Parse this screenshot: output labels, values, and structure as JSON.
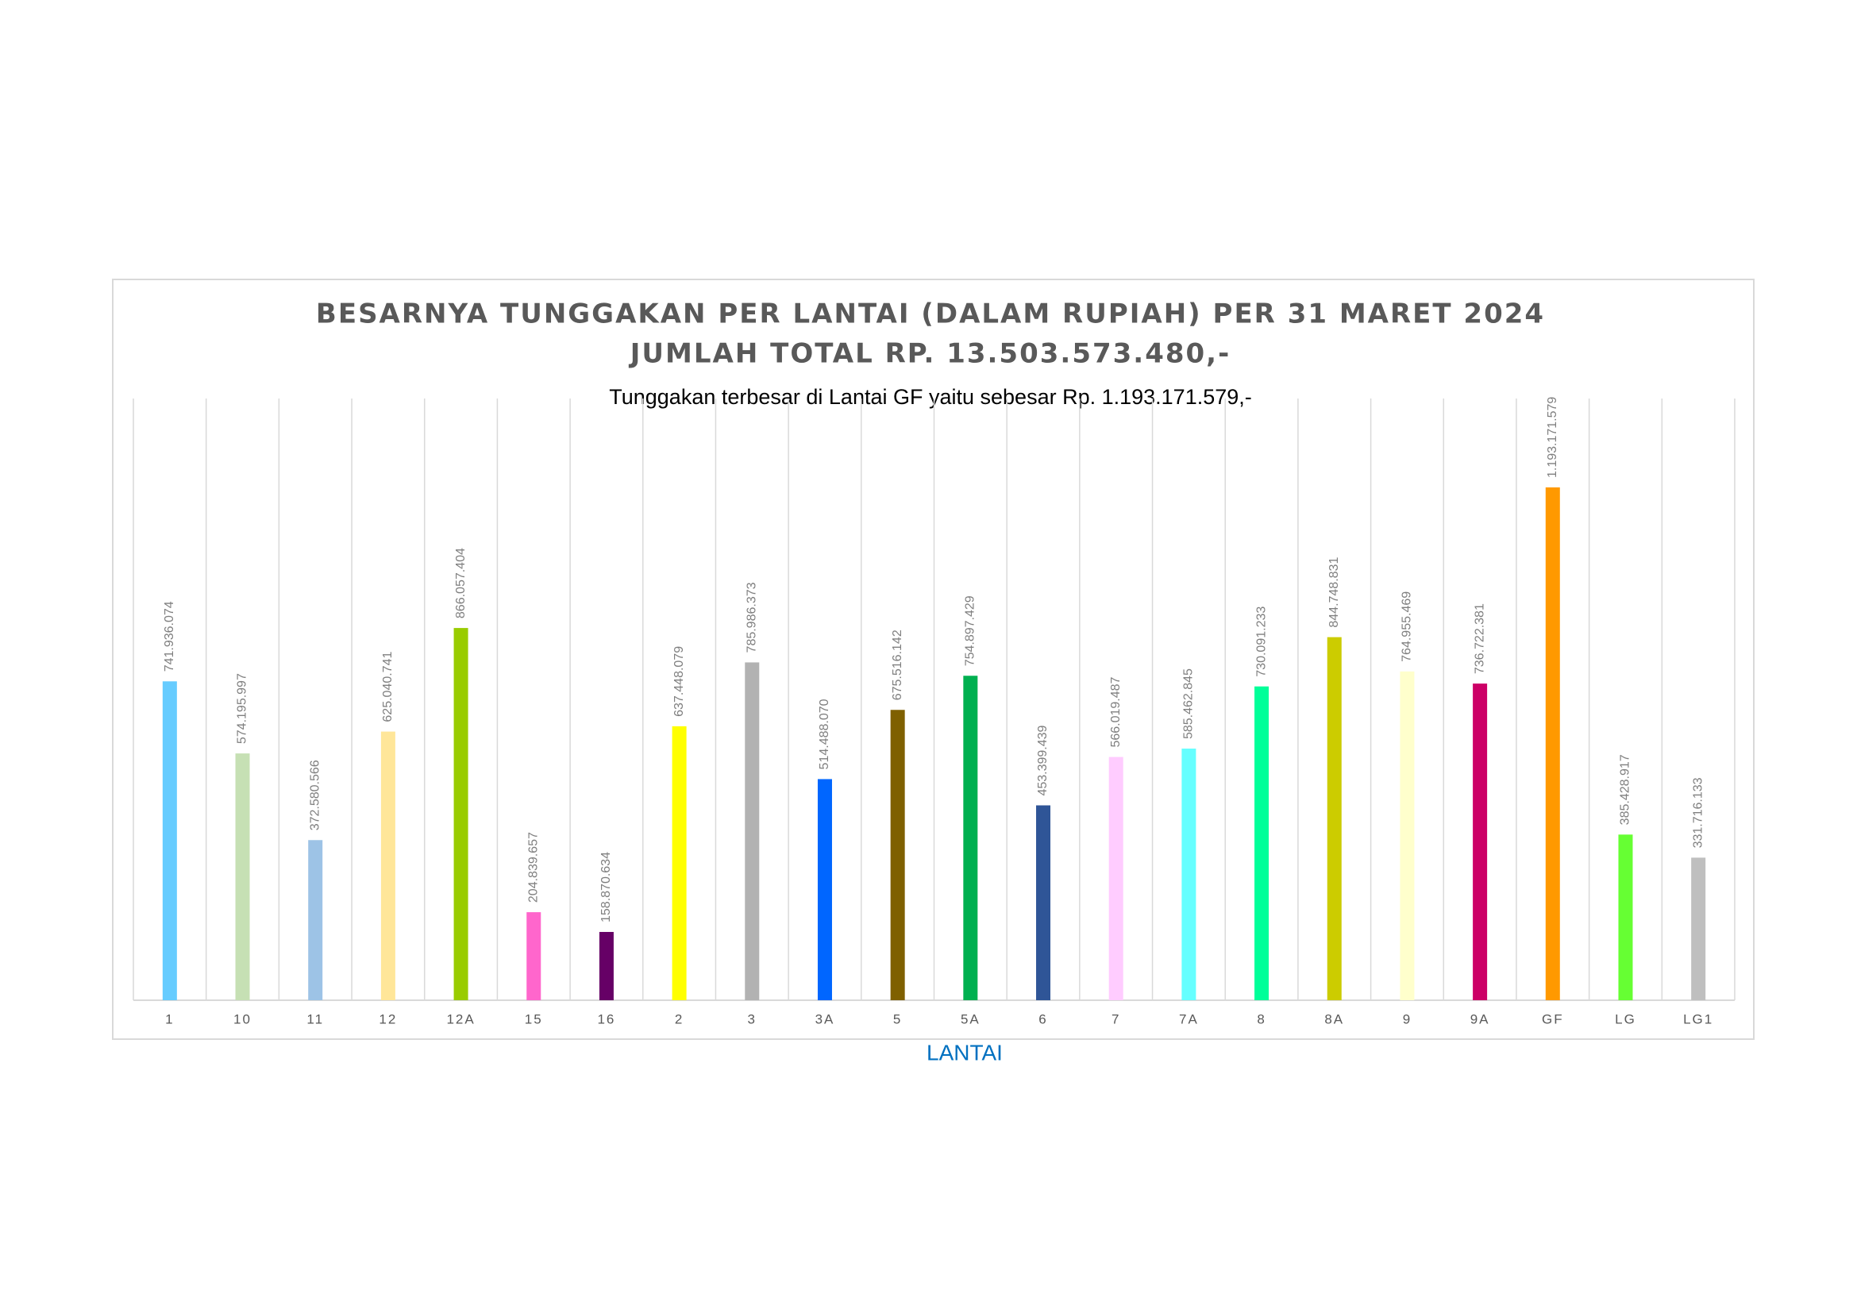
{
  "chart_data": {
    "type": "bar",
    "title": "BESARNYA TUNGGAKAN PER LANTAI (DALAM RUPIAH) PER 31 MARET 2024",
    "subtitle": "JUMLAH TOTAL RP. 13.503.573.480,-",
    "annotation": "Tunggakan terbesar di Lantai GF yaitu sebesar Rp. 1.193.171.579,-",
    "x_label": "LANTAI",
    "categories": [
      "1",
      "10",
      "11",
      "12",
      "12A",
      "15",
      "16",
      "2",
      "3",
      "3A",
      "5",
      "5A",
      "6",
      "7",
      "7A",
      "8",
      "8A",
      "9",
      "9A",
      "GF",
      "LG",
      "LG1"
    ],
    "values": [
      741936074,
      574195997,
      372580566,
      625040741,
      866057404,
      204839657,
      158870634,
      637448079,
      785986373,
      514488070,
      675516142,
      754897429,
      453399439,
      566019487,
      585462845,
      730091233,
      844748831,
      764955469,
      736722381,
      1193171579,
      385428917,
      331716133
    ],
    "value_labels": [
      "741.936.074",
      "574.195.997",
      "372.580.566",
      "625.040.741",
      "866.057.404",
      "204.839.657",
      "158.870.634",
      "637.448.079",
      "785.986.373",
      "514.488.070",
      "675.516.142",
      "754.897.429",
      "453.399.439",
      "566.019.487",
      "585.462.845",
      "730.091.233",
      "844.748.831",
      "764.955.469",
      "736.722.381",
      "1.193.171.579",
      "385.428.917",
      "331.716.133"
    ],
    "colors": [
      "#66ccff",
      "#c6e0b4",
      "#9dc3e6",
      "#ffe699",
      "#99cc00",
      "#ff66cc",
      "#660066",
      "#ffff00",
      "#b2b2b2",
      "#0066ff",
      "#7f6000",
      "#00b050",
      "#2f5597",
      "#ffccff",
      "#66ffff",
      "#00ff99",
      "#cccc00",
      "#ffffcc",
      "#cc0066",
      "#ff9900",
      "#66ff33",
      "#bfbfbf"
    ],
    "ylim": [
      0,
      1400000000
    ]
  }
}
